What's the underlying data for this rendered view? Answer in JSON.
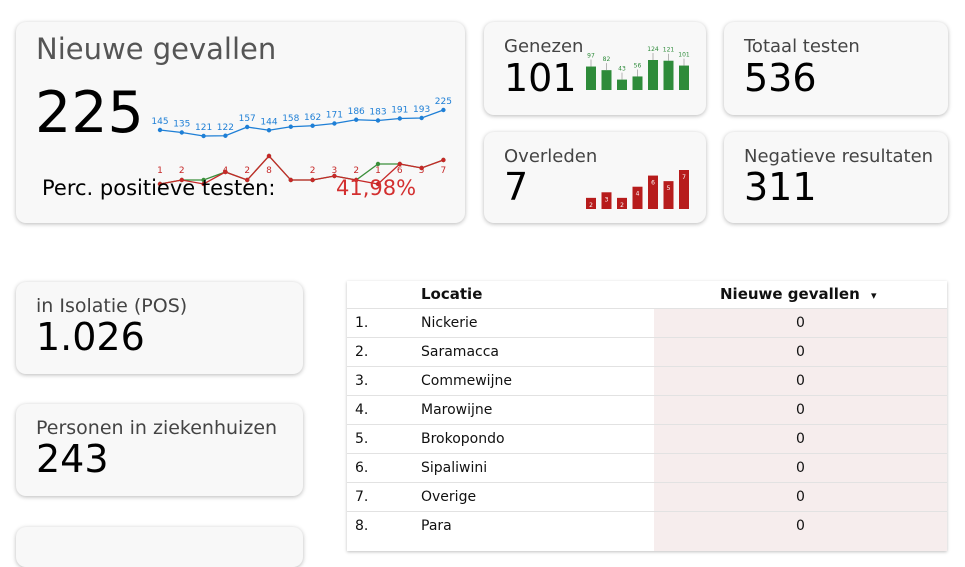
{
  "nieuwe_gevallen": {
    "title": "Nieuwe gevallen",
    "value": "225",
    "perc_label": "Perc. positieve testen:",
    "perc_value": "41,98%"
  },
  "genezen": {
    "title": "Genezen",
    "value": "101"
  },
  "totaal_testen": {
    "title": "Totaal testen",
    "value": "536"
  },
  "overleden": {
    "title": "Overleden",
    "value": "7"
  },
  "negatieve": {
    "title": "Negatieve resultaten",
    "value": "311"
  },
  "isolatie": {
    "title": "in Isolatie (POS)",
    "value": "1.026"
  },
  "ziekenhuizen": {
    "title": "Personen in ziekenhuizen",
    "value": "243"
  },
  "table": {
    "col_locatie": "Locatie",
    "col_nieuwe": "Nieuwe gevallen",
    "sort_icon": "▾",
    "rows": [
      {
        "rank": "1.",
        "locatie": "Nickerie",
        "nieuwe": "0"
      },
      {
        "rank": "2.",
        "locatie": "Saramacca",
        "nieuwe": "0"
      },
      {
        "rank": "3.",
        "locatie": "Commewijne",
        "nieuwe": "0"
      },
      {
        "rank": "4.",
        "locatie": "Marowijne",
        "nieuwe": "0"
      },
      {
        "rank": "5.",
        "locatie": "Brokopondo",
        "nieuwe": "0"
      },
      {
        "rank": "6.",
        "locatie": "Sipaliwini",
        "nieuwe": "0"
      },
      {
        "rank": "7.",
        "locatie": "Overige",
        "nieuwe": "0"
      },
      {
        "rank": "8.",
        "locatie": "Para",
        "nieuwe": "0"
      }
    ]
  },
  "chart_data": [
    {
      "type": "line",
      "series": [
        {
          "color": "#1e7fd6",
          "values": [
            145,
            135,
            121,
            122,
            157,
            144,
            158,
            162,
            171,
            186,
            183,
            191,
            193,
            225
          ]
        },
        {
          "color": "#3a8f3a",
          "values": [
            1,
            2,
            2,
            4,
            2,
            8,
            2,
            2,
            3,
            2,
            6,
            6,
            5,
            7
          ]
        },
        {
          "color": "#c62828",
          "values": [
            1,
            2,
            1,
            4,
            2,
            8,
            2,
            2,
            3,
            2,
            1,
            6,
            5,
            7
          ]
        }
      ],
      "labels_blue": [
        "145",
        "135",
        "121",
        "122",
        "157",
        "144",
        "158",
        "162",
        "171",
        "186",
        "183",
        "191",
        "193",
        "225"
      ],
      "labels_red": [
        "1",
        "2",
        "",
        "4",
        "2",
        "8",
        "",
        "2",
        "3",
        "2",
        "1",
        "6",
        "5",
        "7"
      ]
    },
    {
      "type": "bar",
      "color": "#2e8b3a",
      "values": [
        97,
        82,
        43,
        56,
        124,
        121,
        101
      ]
    },
    {
      "type": "bar",
      "color": "#b71c1c",
      "values": [
        2,
        3,
        2,
        4,
        6,
        5,
        7
      ]
    }
  ]
}
